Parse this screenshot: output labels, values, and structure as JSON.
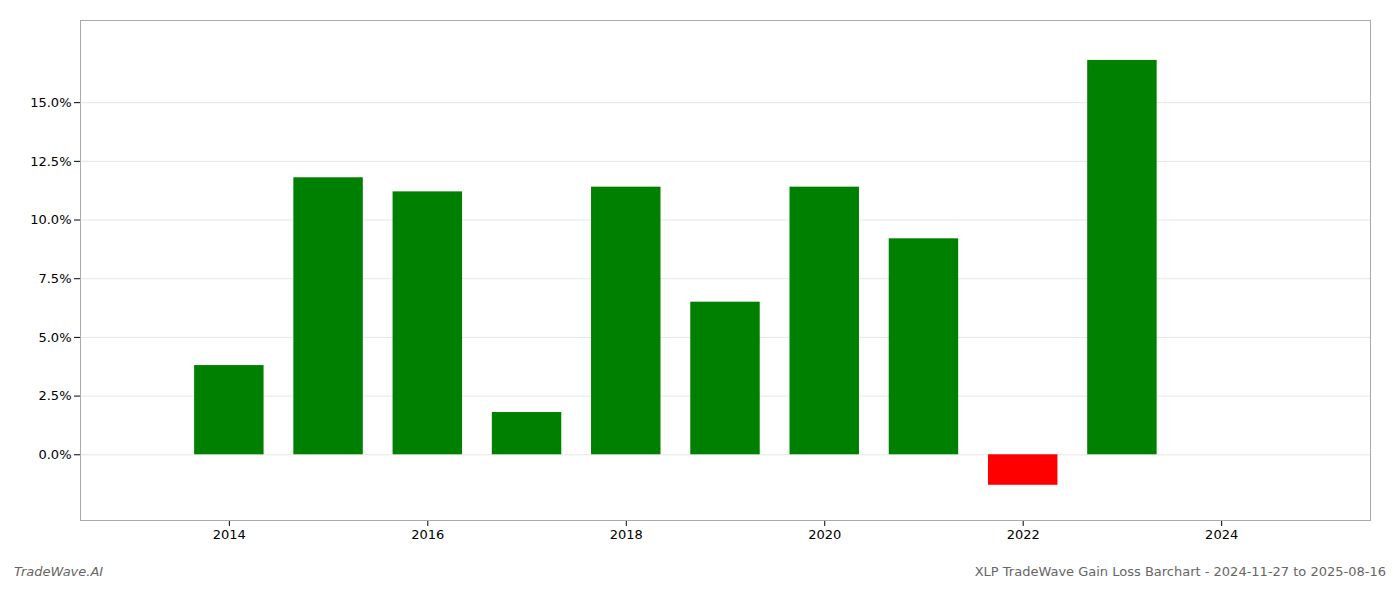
{
  "chart_data": {
    "type": "bar",
    "x": [
      2014,
      2015,
      2016,
      2017,
      2018,
      2019,
      2020,
      2021,
      2022,
      2023
    ],
    "values": [
      0.038,
      0.118,
      0.112,
      0.018,
      0.114,
      0.065,
      0.114,
      0.092,
      -0.013,
      0.168
    ],
    "colors": [
      "#008000",
      "#008000",
      "#008000",
      "#008000",
      "#008000",
      "#008000",
      "#008000",
      "#008000",
      "#ff0000",
      "#008000"
    ],
    "xlim": [
      2012.5,
      2025.5
    ],
    "xticks": [
      2014,
      2016,
      2018,
      2020,
      2022,
      2024
    ],
    "ylim": [
      -0.028,
      0.185
    ],
    "yticks": [
      {
        "value": 0.0,
        "label": "0.0%"
      },
      {
        "value": 0.025,
        "label": "2.5%"
      },
      {
        "value": 0.05,
        "label": "5.0%"
      },
      {
        "value": 0.075,
        "label": "7.5%"
      },
      {
        "value": 0.1,
        "label": "10.0%"
      },
      {
        "value": 0.125,
        "label": "12.5%"
      },
      {
        "value": 0.15,
        "label": "15.0%"
      }
    ],
    "grid": true,
    "annotations": [
      "TradeWave.AI",
      "XLP TradeWave Gain Loss Barchart - 2024-11-27 to 2025-08-16"
    ]
  }
}
